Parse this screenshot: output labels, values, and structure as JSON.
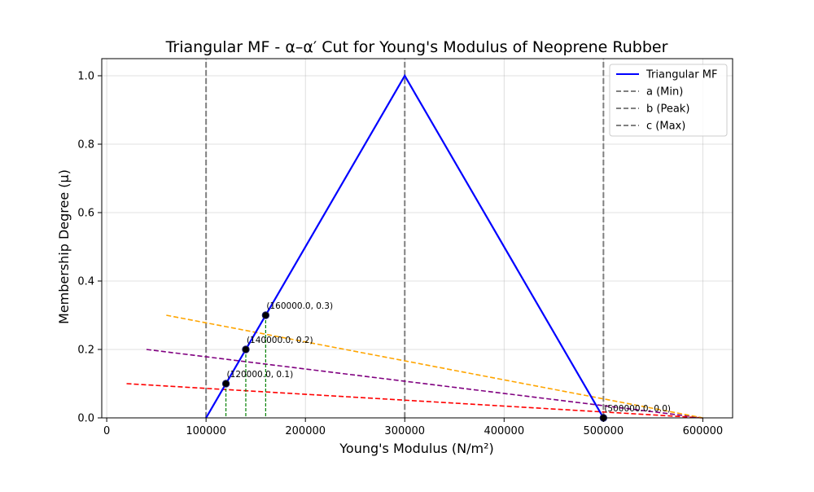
{
  "chart_data": {
    "type": "line",
    "title": "Triangular MF - α–α′ Cut for Young's Modulus of Neoprene Rubber",
    "xlabel": "Young's Modulus (N/m²)",
    "ylabel": "Membership Degree (μ)",
    "xlim": [
      -5000,
      630000
    ],
    "ylim": [
      0,
      1.05
    ],
    "xticks": [
      0,
      100000,
      200000,
      300000,
      400000,
      500000,
      600000
    ],
    "xtick_labels": [
      "0",
      "100000",
      "200000",
      "300000",
      "400000",
      "500000",
      "600000"
    ],
    "yticks": [
      0.0,
      0.2,
      0.4,
      0.6,
      0.8,
      1.0
    ],
    "ytick_labels": [
      "0.0",
      "0.2",
      "0.4",
      "0.6",
      "0.8",
      "1.0"
    ],
    "grid": true,
    "legend_position": "top-right",
    "series": [
      {
        "name": "Triangular MF",
        "style": "solid",
        "color": "#0000ff",
        "x": [
          100000,
          300000,
          500000
        ],
        "y": [
          0,
          1,
          0
        ]
      },
      {
        "name": "a (Min)",
        "style": "dashed-vertical",
        "color": "#808080",
        "x": [
          100000,
          100000
        ],
        "y": [
          0,
          1.05
        ]
      },
      {
        "name": "b (Peak)",
        "style": "dashed-vertical",
        "color": "#808080",
        "x": [
          300000,
          300000
        ],
        "y": [
          0,
          1.05
        ]
      },
      {
        "name": "c (Max)",
        "style": "dashed-vertical",
        "color": "#808080",
        "x": [
          500000,
          500000
        ],
        "y": [
          0,
          1.05
        ]
      }
    ],
    "cut_lines": [
      {
        "color": "#ff0000",
        "x": [
          20000,
          600000
        ],
        "y": [
          0.1,
          0
        ]
      },
      {
        "color": "#800080",
        "x": [
          40000,
          600000
        ],
        "y": [
          0.2,
          0
        ]
      },
      {
        "color": "#ffa500",
        "x": [
          60000,
          600000
        ],
        "y": [
          0.3,
          0
        ]
      }
    ],
    "drop_lines": [
      {
        "color": "#008000",
        "x": 120000,
        "y": 0.1
      },
      {
        "color": "#008000",
        "x": 140000,
        "y": 0.2
      },
      {
        "color": "#008000",
        "x": 160000,
        "y": 0.3
      }
    ],
    "points": [
      {
        "x": 120000,
        "y": 0.1,
        "label": "(120000.0, 0.1)"
      },
      {
        "x": 140000,
        "y": 0.2,
        "label": "(140000.0, 0.2)"
      },
      {
        "x": 160000,
        "y": 0.3,
        "label": "(160000.0, 0.3)"
      },
      {
        "x": 500000,
        "y": 0.0,
        "label": "(500000.0, 0.0)"
      }
    ]
  }
}
